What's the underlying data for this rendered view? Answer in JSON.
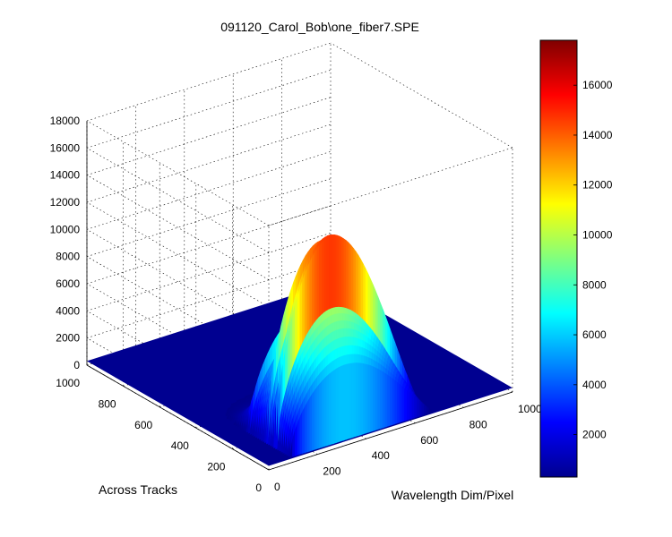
{
  "chart_data": {
    "type": "surface",
    "title": "091120_Carol_Bob\\one_fiber7.SPE",
    "xlabel": "Wavelength Dim/Pixel",
    "ylabel": "Across Tracks",
    "zlabel": "",
    "xlim": [
      0,
      1000
    ],
    "ylim": [
      0,
      1000
    ],
    "zlim": [
      0,
      18000
    ],
    "x_ticks": [
      "0",
      "200",
      "400",
      "600",
      "800",
      "1000"
    ],
    "y_ticks": [
      "0",
      "200",
      "400",
      "600",
      "800",
      "1000"
    ],
    "z_ticks": [
      "0",
      "2000",
      "4000",
      "6000",
      "8000",
      "10000",
      "12000",
      "14000",
      "16000",
      "18000"
    ],
    "colorbar": {
      "min": 300,
      "max": 17800,
      "ticks": [
        "2000",
        "4000",
        "6000",
        "8000",
        "10000",
        "12000",
        "14000",
        "16000"
      ],
      "colormap": "jet"
    },
    "grid": true,
    "baseline": 300,
    "peak_value": 16000,
    "peak_wavelength_pixel": 320,
    "bright_tracks": [
      {
        "track": 95,
        "peak": 16000
      },
      {
        "track": 140,
        "peak": 14000
      },
      {
        "track": 240,
        "peak": 8000
      }
    ]
  }
}
